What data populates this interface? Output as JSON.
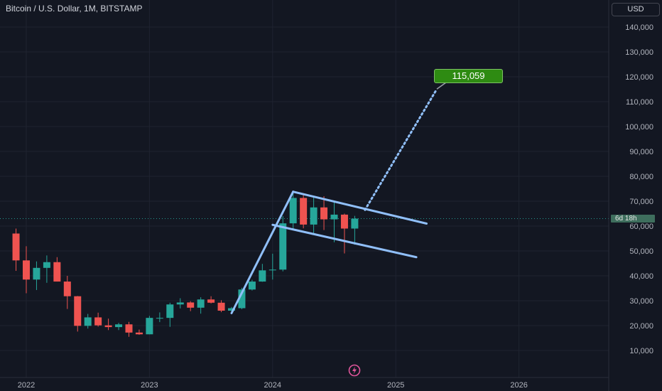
{
  "header": {
    "title": "Bitcoin / U.S. Dollar, 1M, BITSTAMP"
  },
  "price_scale": {
    "currency_button": "USD",
    "countdown": "6d 18h"
  },
  "annotations": {
    "target_label": "115,059"
  },
  "colors": {
    "background": "#131722",
    "up_candle": "#26a69a",
    "down_candle": "#ef5350",
    "drawing_line": "#90bff9",
    "target_label_bg": "#2e8b12"
  },
  "icons": {
    "replay": "lightning-replay-icon"
  },
  "chart_data": {
    "type": "candlestick",
    "title": "Bitcoin / U.S. Dollar, 1M, BITSTAMP",
    "y_axis": {
      "ticks": [
        10000,
        20000,
        30000,
        40000,
        50000,
        60000,
        70000,
        80000,
        90000,
        100000,
        110000,
        120000,
        130000,
        140000
      ],
      "tick_labels": [
        "10,000",
        "20,000",
        "30,000",
        "40,000",
        "50,000",
        "60,000",
        "70,000",
        "80,000",
        "90,000",
        "100,000",
        "110,000",
        "120,000",
        "130,000",
        "140,000"
      ]
    },
    "x_axis": {
      "ticks": [
        "2022-01",
        "2023-01",
        "2024-01",
        "2025-01",
        "2026-01"
      ],
      "tick_labels": [
        "2022",
        "2023",
        "2024",
        "2025",
        "2026"
      ]
    },
    "current_price": 63000,
    "candles": [
      {
        "date": "2021-12",
        "open": 57000,
        "high": 59000,
        "low": 42000,
        "close": 46200
      },
      {
        "date": "2022-01",
        "open": 46200,
        "high": 51900,
        "low": 33000,
        "close": 38500
      },
      {
        "date": "2022-02",
        "open": 38500,
        "high": 45800,
        "low": 34300,
        "close": 43200
      },
      {
        "date": "2022-03",
        "open": 43200,
        "high": 48200,
        "low": 37200,
        "close": 45500
      },
      {
        "date": "2022-04",
        "open": 45500,
        "high": 47500,
        "low": 37700,
        "close": 37700
      },
      {
        "date": "2022-05",
        "open": 37700,
        "high": 40000,
        "low": 26700,
        "close": 31800
      },
      {
        "date": "2022-06",
        "open": 31800,
        "high": 31900,
        "low": 17600,
        "close": 19900
      },
      {
        "date": "2022-07",
        "open": 19900,
        "high": 24700,
        "low": 18800,
        "close": 23300
      },
      {
        "date": "2022-08",
        "open": 23300,
        "high": 25200,
        "low": 19600,
        "close": 20100
      },
      {
        "date": "2022-09",
        "open": 20100,
        "high": 22800,
        "low": 18200,
        "close": 19400
      },
      {
        "date": "2022-10",
        "open": 19400,
        "high": 21100,
        "low": 18200,
        "close": 20500
      },
      {
        "date": "2022-11",
        "open": 20500,
        "high": 21500,
        "low": 15500,
        "close": 17200
      },
      {
        "date": "2022-12",
        "open": 17200,
        "high": 18400,
        "low": 16300,
        "close": 16500
      },
      {
        "date": "2023-01",
        "open": 16500,
        "high": 23900,
        "low": 16500,
        "close": 23100
      },
      {
        "date": "2023-02",
        "open": 23100,
        "high": 25300,
        "low": 21400,
        "close": 23100
      },
      {
        "date": "2023-03",
        "open": 23100,
        "high": 29200,
        "low": 19500,
        "close": 28500
      },
      {
        "date": "2023-04",
        "open": 28500,
        "high": 31000,
        "low": 26900,
        "close": 29300
      },
      {
        "date": "2023-05",
        "open": 29300,
        "high": 29800,
        "low": 25800,
        "close": 27200
      },
      {
        "date": "2023-06",
        "open": 27200,
        "high": 31400,
        "low": 24800,
        "close": 30500
      },
      {
        "date": "2023-07",
        "open": 30500,
        "high": 31800,
        "low": 28900,
        "close": 29200
      },
      {
        "date": "2023-08",
        "open": 29200,
        "high": 30200,
        "low": 25400,
        "close": 26000
      },
      {
        "date": "2023-09",
        "open": 26000,
        "high": 27500,
        "low": 24900,
        "close": 27000
      },
      {
        "date": "2023-10",
        "open": 27000,
        "high": 35200,
        "low": 26600,
        "close": 34500
      },
      {
        "date": "2023-11",
        "open": 34500,
        "high": 38400,
        "low": 34100,
        "close": 37700
      },
      {
        "date": "2023-12",
        "open": 37700,
        "high": 44800,
        "low": 37600,
        "close": 42200
      },
      {
        "date": "2024-01",
        "open": 42200,
        "high": 48900,
        "low": 38500,
        "close": 42500
      },
      {
        "date": "2024-02",
        "open": 42500,
        "high": 64000,
        "low": 41800,
        "close": 61100
      },
      {
        "date": "2024-03",
        "open": 61100,
        "high": 73800,
        "low": 59000,
        "close": 71300
      },
      {
        "date": "2024-04",
        "open": 71300,
        "high": 72800,
        "low": 59100,
        "close": 60600
      },
      {
        "date": "2024-05",
        "open": 60600,
        "high": 71900,
        "low": 56500,
        "close": 67500
      },
      {
        "date": "2024-06",
        "open": 67500,
        "high": 72000,
        "low": 58400,
        "close": 62700
      },
      {
        "date": "2024-07",
        "open": 62700,
        "high": 70000,
        "low": 53500,
        "close": 64600
      },
      {
        "date": "2024-08",
        "open": 64600,
        "high": 65000,
        "low": 49000,
        "close": 59000
      },
      {
        "date": "2024-09",
        "open": 59000,
        "high": 64100,
        "low": 52500,
        "close": 63000
      }
    ],
    "drawings": [
      {
        "name": "flagpole",
        "style": "solid",
        "points": [
          [
            "2023-09",
            25000
          ],
          [
            "2024-03",
            73800
          ]
        ]
      },
      {
        "name": "flag-upper",
        "style": "solid",
        "points": [
          [
            "2024-03",
            73800
          ],
          [
            "2025-04",
            61000
          ]
        ]
      },
      {
        "name": "flag-lower",
        "style": "solid",
        "points": [
          [
            "2024-01",
            60500
          ],
          [
            "2025-03",
            47500
          ]
        ]
      },
      {
        "name": "projection",
        "style": "dotted",
        "points": [
          [
            "2024-10",
            66500
          ],
          [
            "2025-05",
            115059
          ]
        ]
      }
    ],
    "target": {
      "value": 115059,
      "label": "115,059"
    }
  }
}
